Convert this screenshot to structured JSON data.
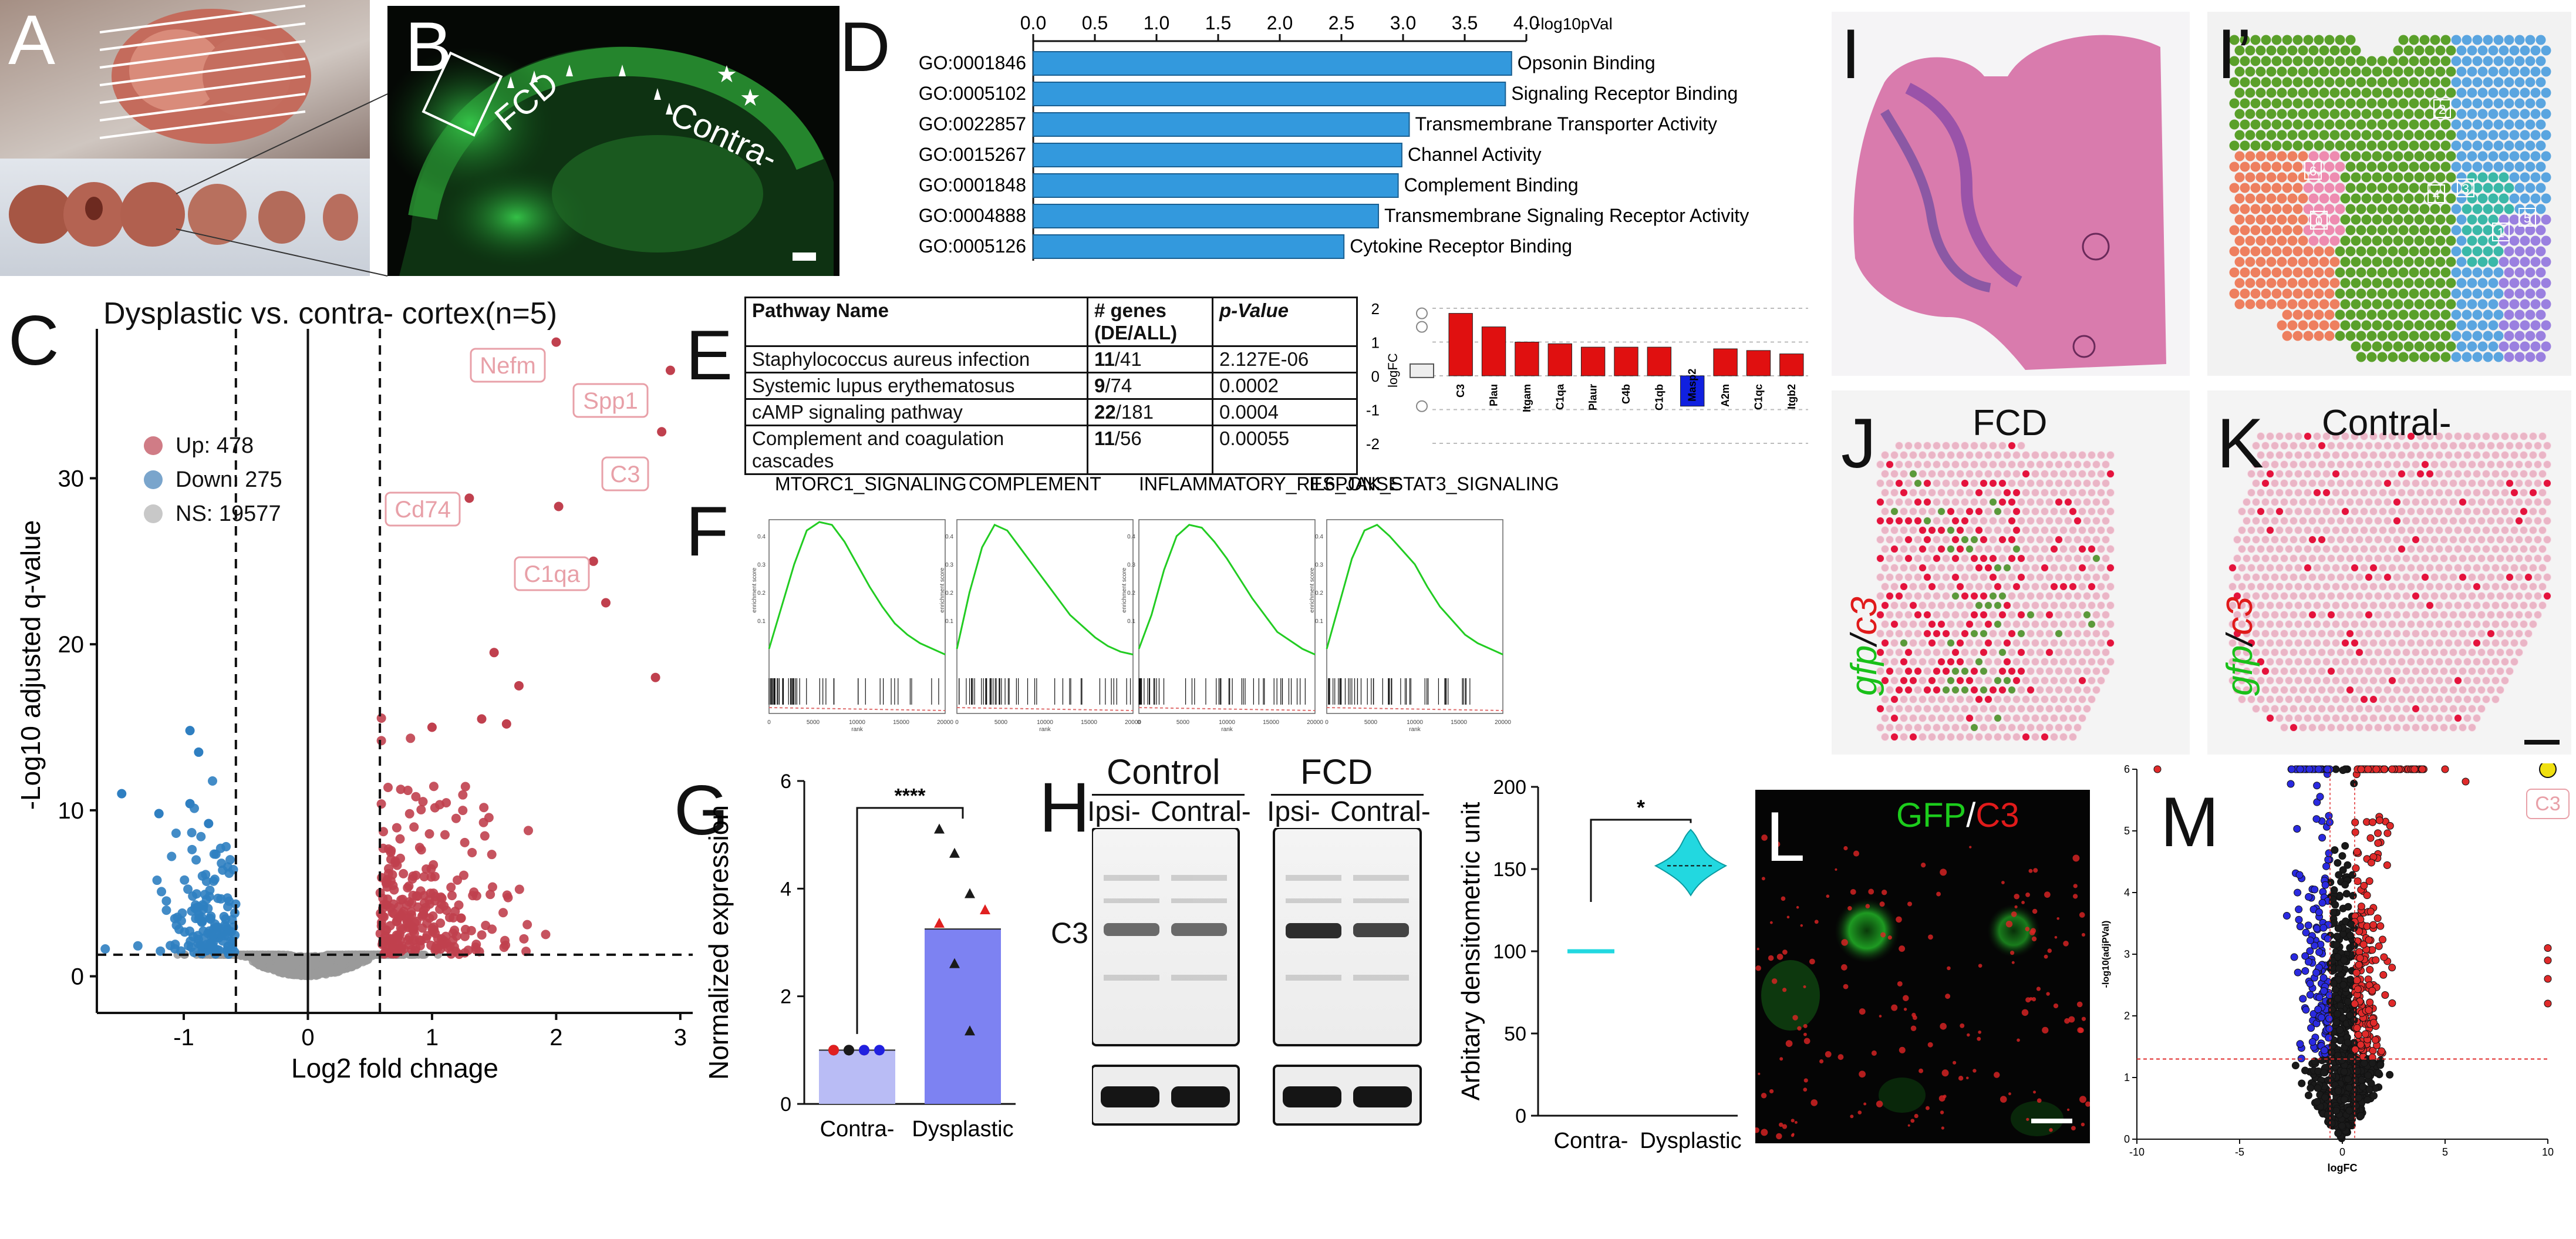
{
  "panel_labels": {
    "A": "A",
    "B": "B",
    "C": "C",
    "D": "D",
    "E": "E",
    "F": "F",
    "G": "G",
    "H": "H",
    "I": "I",
    "I2": "I’",
    "J": "J",
    "K": "K",
    "L": "L",
    "M": "M"
  },
  "panelB": {
    "fcd_label": "FCD",
    "contra_label": "Contra-"
  },
  "panelC": {
    "title": "Dysplastic vs. contra- cortex(n=5)",
    "xlabel": "Log2 fold chnage",
    "ylabel": "-Log10 adjusted q-value",
    "legend": [
      {
        "label": "Up: 478",
        "color": "#d07c86"
      },
      {
        "label": "Down: 275",
        "color": "#7aa5cc"
      },
      {
        "label": "NS: 19577",
        "color": "#c8c8c8"
      }
    ],
    "gene_labels": [
      "Nefm",
      "Spp1",
      "C3",
      "Cd74",
      "C1qa"
    ],
    "colors": {
      "up": "#c0404e",
      "down": "#2f7fc1",
      "ns": "#9a9a9a",
      "label": "#e8a0a8"
    }
  },
  "chart_data": [
    {
      "type": "scatter",
      "panel": "C",
      "title": "Dysplastic vs. contra- cortex(n=5)",
      "xlabel": "Log2 fold chnage",
      "ylabel": "-Log10 adjusted q-value",
      "xlim": [
        -1.7,
        3.1
      ],
      "ylim": [
        -1.5,
        39
      ],
      "xticks": [
        -1,
        0,
        1,
        2,
        3
      ],
      "yticks": [
        0,
        10,
        20,
        30
      ],
      "thresholds": {
        "x": [
          -0.58,
          0.58
        ],
        "y": 1.3
      },
      "labeled_points": [
        {
          "gene": "Nefm",
          "x": 2.0,
          "y": 38.2
        },
        {
          "gene": "Spp1",
          "x": 2.92,
          "y": 36.5
        },
        {
          "gene": "C3",
          "x": 2.85,
          "y": 32.8
        },
        {
          "gene": "Cd74",
          "x": 1.3,
          "y": 28.8
        },
        {
          "gene": "C1qa",
          "x": 2.02,
          "y": 28.3
        }
      ]
    },
    {
      "type": "bar",
      "panel": "D",
      "orientation": "horizontal",
      "xlabel": "-log10pVal",
      "xlim": [
        0,
        4.0
      ],
      "xticks": [
        0,
        0.5,
        1.0,
        1.5,
        2.0,
        2.5,
        3.0,
        3.5,
        4.0
      ],
      "categories": [
        "GO:0001846",
        "GO:0005102",
        "GO:0022857",
        "GO:0015267",
        "GO:0001848",
        "GO:0004888",
        "GO:0005126"
      ],
      "terms": [
        "Opsonin Binding",
        "Signaling Receptor Binding",
        "Transmembrane Transporter Activity",
        "Channel Activity",
        "Complement Binding",
        "Transmembrane Signaling Receptor  Activity",
        "Cytokine Receptor Binding"
      ],
      "values": [
        3.88,
        3.83,
        3.05,
        2.99,
        2.96,
        2.8,
        2.52
      ],
      "color": "#3399dd"
    },
    {
      "type": "bar",
      "panel": "E",
      "ylabel": "logFC",
      "ylim": [
        -2,
        2
      ],
      "yticks": [
        -2,
        -1,
        0,
        1,
        2
      ],
      "categories": [
        "C3",
        "Plau",
        "Itgam",
        "C1qa",
        "Plaur",
        "C4b",
        "C1qb",
        "Masp2",
        "A2m",
        "C1qc",
        "Itgb2"
      ],
      "values": [
        1.85,
        1.45,
        1.0,
        0.95,
        0.85,
        0.85,
        0.85,
        -0.9,
        0.8,
        0.75,
        0.65
      ],
      "colors": [
        "#e01010",
        "#e01010",
        "#e01010",
        "#e01010",
        "#e01010",
        "#e01010",
        "#e01010",
        "#1020e0",
        "#e01010",
        "#e01010",
        "#e01010"
      ]
    },
    {
      "type": "line",
      "panel": "F",
      "series": [
        {
          "name": "MTORC1_SIGNALING"
        },
        {
          "name": "COMPLEMENT"
        },
        {
          "name": "INFLAMMATORY_RESPONSE"
        },
        {
          "name": "IL6_JAK_STAT3_SIGNALING"
        }
      ],
      "xlabel": "rank",
      "ylabel": "enrichment score",
      "xticks": [
        "0",
        "5000",
        "10000",
        "15000",
        "20000"
      ],
      "yticks": [
        "0.1",
        "0.2",
        "0.3",
        "0.4"
      ],
      "color": "#22cc22"
    },
    {
      "type": "bar",
      "panel": "G",
      "categories": [
        "Contra-",
        "Dysplastic"
      ],
      "values": [
        1.0,
        3.25
      ],
      "ylabel": "Normalized expression",
      "ylim": [
        0,
        6
      ],
      "yticks": [
        0,
        2,
        4,
        6
      ],
      "significance": "****",
      "colors": [
        "#b9bcf5",
        "#7d82f2"
      ],
      "points": [
        [
          1.0,
          1.0,
          1.0,
          1.0,
          1.0,
          1.0,
          1.0
        ],
        [
          5.1,
          4.65,
          3.9,
          3.6,
          3.35,
          2.6,
          1.35
        ]
      ],
      "point_colors": [
        [
          "#1a1a1a",
          "#1a1a1a",
          "#e02020",
          "#2020e0",
          "#e02020",
          "#1a1a1a",
          "#2020e0"
        ],
        [
          "#1a1a1a",
          "#1a1a1a",
          "#1a1a1a",
          "#e02020",
          "#e02020",
          "#1a1a1a",
          "#1a1a1a"
        ]
      ]
    },
    {
      "type": "scatter",
      "panel": "H",
      "subtype": "violin",
      "categories": [
        "Contra-",
        "Dysplastic"
      ],
      "values": [
        100,
        152
      ],
      "ylabel": "Arbitary densitometric unit",
      "ylim": [
        0,
        200
      ],
      "yticks": [
        0,
        50,
        100,
        150,
        200
      ],
      "significance": "*",
      "color": "#22d8e0"
    },
    {
      "type": "scatter",
      "panel": "M",
      "xlabel": "logFC",
      "ylabel": "-log10(adjPVal)",
      "xlim": [
        -10,
        10
      ],
      "ylim": [
        0,
        6
      ],
      "xticks": [
        -10,
        -5,
        0,
        5,
        10
      ],
      "yticks": [
        0,
        1,
        2,
        3,
        4,
        5,
        6
      ],
      "threshold_y": 1.3,
      "highlight": {
        "gene": "C3",
        "x": 10,
        "y": 6
      }
    }
  ],
  "panelE": {
    "headers": [
      "Pathway Name",
      "# genes (DE/ALL)",
      "p-Value"
    ],
    "rows": [
      {
        "name": "Staphylococcus aureus infection",
        "de": "11",
        "all": "/41",
        "p": "2.127E-06"
      },
      {
        "name": "Systemic lupus erythematosus",
        "de": "9",
        "all": "/74",
        "p": "0.0002"
      },
      {
        "name": "cAMP signaling pathway",
        "de": "22",
        "all": "/181",
        "p": "0.0004"
      },
      {
        "name": "Complement and coagulation cascades",
        "de": "11",
        "all": "/56",
        "p": "0.00055"
      }
    ]
  },
  "panelH": {
    "control": "Control",
    "fcd": "FCD",
    "lanes": [
      "Ipsi-",
      "Contral-",
      "Ipsi-",
      "Contral-"
    ],
    "band_label": "C3"
  },
  "panelI2": {
    "clusters": [
      "2",
      "6",
      "0",
      "4",
      "3",
      "1",
      "5"
    ]
  },
  "panelJ": {
    "title": "FCD",
    "marker_gfp": "gfp",
    "slash": "/",
    "marker_c3": "c3"
  },
  "panelK": {
    "title": "Contral-",
    "marker_gfp": "gfp",
    "slash": "/",
    "marker_c3": "c3"
  },
  "panelL": {
    "gfp": "GFP",
    "slash": "/",
    "c3": "C3"
  }
}
